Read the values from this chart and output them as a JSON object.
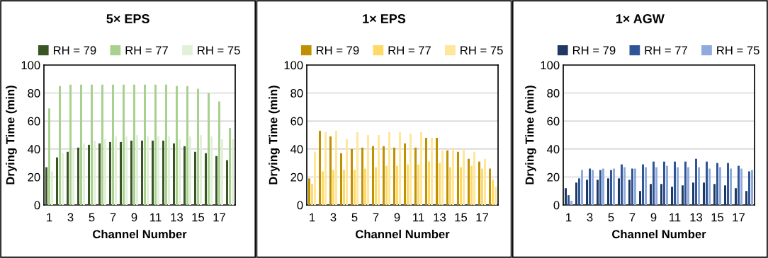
{
  "chart_data": [
    {
      "type": "bar",
      "title": "5× EPS",
      "xlabel": "Channel Number",
      "ylabel": "Drying Time (min)",
      "categories": [
        "1",
        null,
        "3",
        null,
        "5",
        null,
        "7",
        null,
        "9",
        null,
        "11",
        null,
        "13",
        null,
        "15",
        null,
        "17",
        null
      ],
      "series": [
        {
          "name": "RH = 79",
          "color": "#375623",
          "values": [
            27,
            34,
            38,
            41,
            43,
            44,
            45,
            45,
            46,
            46,
            46,
            46,
            44,
            42,
            38,
            37,
            35,
            32
          ]
        },
        {
          "name": "RH = 77",
          "color": "#a9d18e",
          "values": [
            69,
            85,
            86,
            86,
            86,
            86,
            86,
            86,
            86,
            86,
            86,
            86,
            85,
            85,
            83,
            80,
            74,
            55
          ]
        },
        {
          "name": "RH = 75",
          "color": "#e2efd9",
          "values": [
            24,
            37,
            40,
            44,
            46,
            47,
            49,
            49,
            50,
            49,
            49,
            49,
            47,
            49,
            50,
            49,
            47,
            47
          ]
        }
      ],
      "ylim": [
        0,
        100
      ],
      "yticks": [
        0,
        20,
        40,
        60,
        80,
        100
      ],
      "grid": "y",
      "legend": "top"
    },
    {
      "type": "bar",
      "title": "1× EPS",
      "xlabel": "Channel Number",
      "ylabel": "Drying Time (min)",
      "categories": [
        "1",
        null,
        "3",
        null,
        "5",
        null,
        "7",
        null,
        "9",
        null,
        "11",
        null,
        "13",
        null,
        "15",
        null,
        "17",
        null
      ],
      "series": [
        {
          "name": "RH = 79",
          "color": "#bf9000",
          "values": [
            19,
            53,
            49,
            37,
            40,
            41,
            42,
            42,
            41,
            44,
            41,
            48,
            48,
            39,
            38,
            33,
            31,
            26
          ]
        },
        {
          "name": "RH = 77",
          "color": "#ffd966",
          "values": [
            15,
            24,
            25,
            25,
            25,
            26,
            27,
            28,
            28,
            29,
            29,
            31,
            30,
            27,
            27,
            28,
            26,
            18
          ]
        },
        {
          "name": "RH = 75",
          "color": "#ffe699",
          "values": [
            38,
            52,
            53,
            47,
            52,
            50,
            50,
            52,
            52,
            51,
            52,
            48,
            39,
            41,
            40,
            38,
            33,
            13
          ]
        }
      ],
      "ylim": [
        0,
        100
      ],
      "yticks": [
        0,
        20,
        40,
        60,
        80,
        100
      ],
      "grid": "y",
      "legend": "top"
    },
    {
      "type": "bar",
      "title": "1× AGW",
      "xlabel": "Channel Number",
      "ylabel": "Drying Time (min)",
      "categories": [
        "1",
        null,
        "3",
        null,
        "5",
        null,
        "7",
        null,
        "9",
        null,
        "11",
        null,
        "13",
        null,
        "15",
        null,
        "17",
        null
      ],
      "series": [
        {
          "name": "RH = 79",
          "color": "#1f3864",
          "values": [
            12,
            16,
            18,
            18,
            19,
            19,
            18,
            10,
            15,
            15,
            13,
            14,
            16,
            16,
            15,
            14,
            12,
            10
          ]
        },
        {
          "name": "RH = 77",
          "color": "#2f5597",
          "values": [
            7,
            19,
            26,
            25,
            25,
            29,
            26,
            29,
            31,
            31,
            31,
            31,
            33,
            31,
            30,
            30,
            28,
            24
          ]
        },
        {
          "name": "RH = 75",
          "color": "#8faadc",
          "values": [
            3,
            25,
            25,
            26,
            26,
            27,
            26,
            27,
            27,
            28,
            27,
            27,
            27,
            26,
            27,
            26,
            26,
            25
          ]
        }
      ],
      "ylim": [
        0,
        100
      ],
      "yticks": [
        0,
        20,
        40,
        60,
        80,
        100
      ],
      "grid": "y",
      "legend": "top"
    }
  ]
}
